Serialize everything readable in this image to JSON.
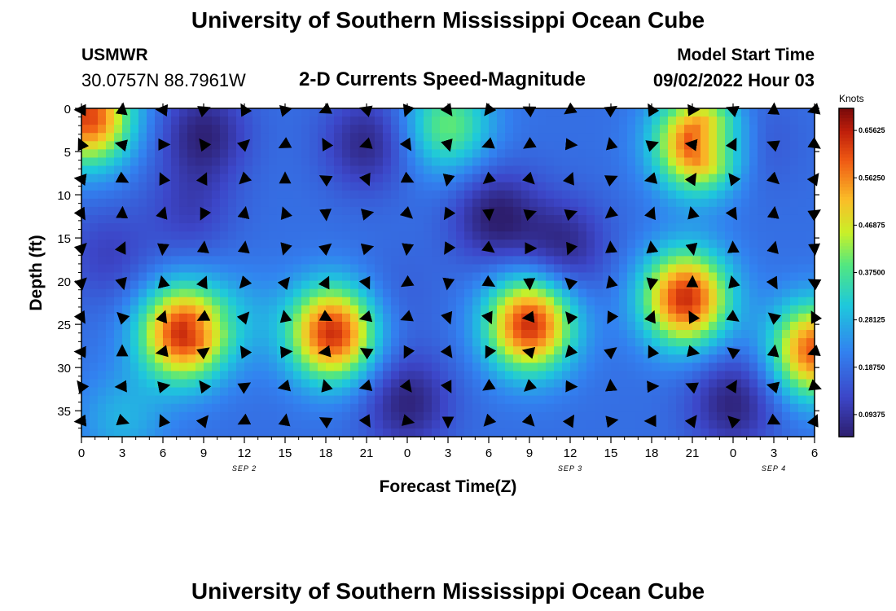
{
  "page_title": "University of Southern Mississippi Ocean Cube",
  "page_title_repeat": "University of Southern Mississippi Ocean Cube",
  "station": {
    "name": "USMWR",
    "coords": "30.0757N  88.7961W"
  },
  "model": {
    "label": "Model Start Time",
    "value": "09/02/2022 Hour 03"
  },
  "chart_data": {
    "type": "heatmap",
    "title": "2-D Currents Speed-Magnitude",
    "xlabel": "Forecast Time(Z)",
    "ylabel": "Depth (ft)",
    "x_hours": [
      0,
      54
    ],
    "x_ticks": [
      "0",
      "3",
      "6",
      "9",
      "12",
      "15",
      "18",
      "21",
      "0",
      "3",
      "6",
      "9",
      "12",
      "15",
      "18",
      "21",
      "0",
      "3",
      "6"
    ],
    "date_labels": [
      {
        "text": "SEP 2",
        "hour": 12
      },
      {
        "text": "SEP 3",
        "hour": 36
      },
      {
        "text": "SEP 4",
        "hour": 51
      }
    ],
    "y_range": [
      0,
      38
    ],
    "y_ticks": [
      "0",
      "5",
      "10",
      "15",
      "20",
      "25",
      "30",
      "35"
    ],
    "y_tick_values": [
      0,
      5,
      10,
      15,
      20,
      25,
      30,
      35
    ],
    "colorbar": {
      "label": "Knots",
      "range": [
        0.05,
        0.7
      ],
      "tick_labels": [
        "0.65625",
        "0.56250",
        "0.46875",
        "0.37500",
        "0.28125",
        "0.18750",
        "0.09375"
      ],
      "tick_values": [
        0.65625,
        0.5625,
        0.46875,
        0.375,
        0.28125,
        0.1875,
        0.09375
      ]
    },
    "field_features": [
      {
        "hour": 0.5,
        "depth": 1,
        "speed": 0.62
      },
      {
        "hour": 9,
        "depth": 3,
        "speed": 0.06
      },
      {
        "hour": 21,
        "depth": 4,
        "speed": 0.07
      },
      {
        "hour": 27,
        "depth": 2,
        "speed": 0.4
      },
      {
        "hour": 45.5,
        "depth": 4,
        "speed": 0.64
      },
      {
        "hour": 49,
        "depth": 4,
        "speed": 0.12
      },
      {
        "hour": 30.5,
        "depth": 12.5,
        "speed": 0.05
      },
      {
        "hour": 35.5,
        "depth": 16,
        "speed": 0.07
      },
      {
        "hour": 2,
        "depth": 17,
        "speed": 0.12
      },
      {
        "hour": 8,
        "depth": 12,
        "speed": 0.12
      },
      {
        "hour": 23,
        "depth": 22,
        "speed": 0.16
      },
      {
        "hour": 7.5,
        "depth": 26,
        "speed": 0.64
      },
      {
        "hour": 18.5,
        "depth": 26,
        "speed": 0.64
      },
      {
        "hour": 33,
        "depth": 25,
        "speed": 0.64
      },
      {
        "hour": 44.5,
        "depth": 22,
        "speed": 0.64
      },
      {
        "hour": 54,
        "depth": 28,
        "speed": 0.6
      },
      {
        "hour": 24,
        "depth": 34,
        "speed": 0.06
      },
      {
        "hour": 48,
        "depth": 34,
        "speed": 0.06
      },
      {
        "hour": 12,
        "depth": 24,
        "speed": 0.24
      },
      {
        "hour": 3,
        "depth": 36,
        "speed": 0.28
      }
    ],
    "vector_rows_depth": [
      0,
      4,
      8,
      12,
      16,
      20,
      24,
      28,
      32,
      36
    ],
    "vector_columns_hour": [
      0,
      3,
      6,
      9,
      12,
      15,
      18,
      21,
      24,
      27,
      30,
      33,
      36,
      39,
      42,
      45,
      48,
      51,
      54
    ]
  }
}
